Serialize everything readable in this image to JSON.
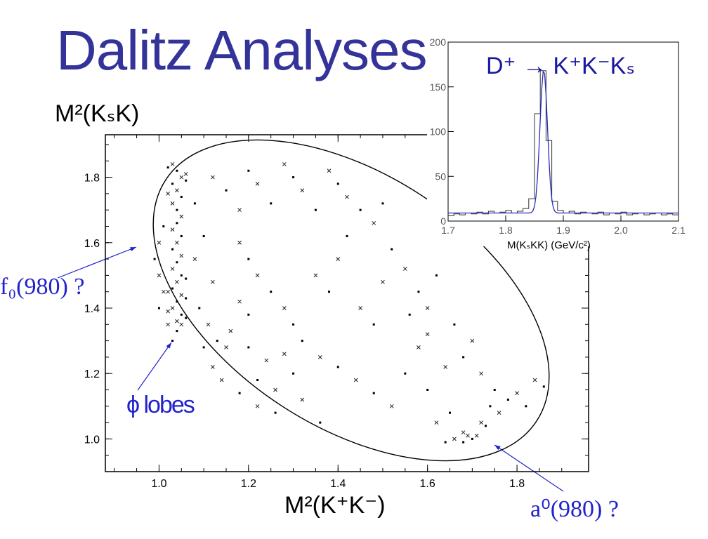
{
  "title": "Dalitz Analyses",
  "annotations": {
    "f0": "f₀(980) ?",
    "phi": "ϕ lobes",
    "a0": "a⁰(980) ?"
  },
  "colors": {
    "title": "#333399",
    "annotation": "#2222cc",
    "inset_fit": "#2b2bb8"
  },
  "chart_data": [
    {
      "type": "scatter",
      "xlabel": "M²(K⁺K⁻)",
      "ylabel": "M²(KₛK)",
      "xlim": [
        0.88,
        1.96
      ],
      "ylim": [
        0.9,
        1.93
      ],
      "xticks": [
        "1.0",
        "1.2",
        "1.4",
        "1.6",
        "1.8"
      ],
      "yticks": [
        "1.0",
        "1.2",
        "1.4",
        "1.6",
        "1.8"
      ],
      "boundary": "Dalitz kinematic boundary (ellipse)",
      "points": [
        [
          1.03,
          1.84
        ],
        [
          1.04,
          1.82
        ],
        [
          1.05,
          1.8
        ],
        [
          1.03,
          1.78
        ],
        [
          1.04,
          1.76
        ],
        [
          1.05,
          1.74
        ],
        [
          1.03,
          1.72
        ],
        [
          1.04,
          1.7
        ],
        [
          1.05,
          1.68
        ],
        [
          1.04,
          1.66
        ],
        [
          1.03,
          1.64
        ],
        [
          1.05,
          1.62
        ],
        [
          1.04,
          1.6
        ],
        [
          1.03,
          1.58
        ],
        [
          1.05,
          1.56
        ],
        [
          1.04,
          1.54
        ],
        [
          1.03,
          1.52
        ],
        [
          1.05,
          1.5
        ],
        [
          1.04,
          1.48
        ],
        [
          1.03,
          1.46
        ],
        [
          1.05,
          1.44
        ],
        [
          1.04,
          1.42
        ],
        [
          1.03,
          1.4
        ],
        [
          1.05,
          1.38
        ],
        [
          1.04,
          1.36
        ],
        [
          1.06,
          1.37
        ],
        [
          1.02,
          1.39
        ],
        [
          1.06,
          1.43
        ],
        [
          1.02,
          1.45
        ],
        [
          1.06,
          1.49
        ],
        [
          1.02,
          1.75
        ],
        [
          1.06,
          1.79
        ],
        [
          1.06,
          1.81
        ],
        [
          1.02,
          1.83
        ],
        [
          1.05,
          1.35
        ],
        [
          1.04,
          1.33
        ],
        [
          1.0,
          1.6
        ],
        [
          1.01,
          1.65
        ],
        [
          1.0,
          1.5
        ],
        [
          0.99,
          1.55
        ],
        [
          1.01,
          1.45
        ],
        [
          1.0,
          1.4
        ],
        [
          1.02,
          1.35
        ],
        [
          1.03,
          1.3
        ],
        [
          1.08,
          1.55
        ],
        [
          1.1,
          1.62
        ],
        [
          1.12,
          1.48
        ],
        [
          1.09,
          1.4
        ],
        [
          1.11,
          1.35
        ],
        [
          1.13,
          1.3
        ],
        [
          1.15,
          1.28
        ],
        [
          1.08,
          1.72
        ],
        [
          1.12,
          1.8
        ],
        [
          1.15,
          1.76
        ],
        [
          1.18,
          1.7
        ],
        [
          1.2,
          1.82
        ],
        [
          1.22,
          1.78
        ],
        [
          1.25,
          1.72
        ],
        [
          1.28,
          1.84
        ],
        [
          1.3,
          1.8
        ],
        [
          1.32,
          1.76
        ],
        [
          1.35,
          1.7
        ],
        [
          1.38,
          1.82
        ],
        [
          1.4,
          1.78
        ],
        [
          1.42,
          1.74
        ],
        [
          1.45,
          1.7
        ],
        [
          1.48,
          1.66
        ],
        [
          1.5,
          1.72
        ],
        [
          1.18,
          1.6
        ],
        [
          1.2,
          1.55
        ],
        [
          1.22,
          1.5
        ],
        [
          1.25,
          1.45
        ],
        [
          1.28,
          1.4
        ],
        [
          1.3,
          1.35
        ],
        [
          1.18,
          1.42
        ],
        [
          1.2,
          1.38
        ],
        [
          1.16,
          1.33
        ],
        [
          1.2,
          1.28
        ],
        [
          1.24,
          1.24
        ],
        [
          1.22,
          1.18
        ],
        [
          1.26,
          1.15
        ],
        [
          1.3,
          1.2
        ],
        [
          1.28,
          1.26
        ],
        [
          1.32,
          1.3
        ],
        [
          1.35,
          1.5
        ],
        [
          1.38,
          1.45
        ],
        [
          1.4,
          1.55
        ],
        [
          1.42,
          1.62
        ],
        [
          1.45,
          1.4
        ],
        [
          1.48,
          1.35
        ],
        [
          1.5,
          1.48
        ],
        [
          1.52,
          1.58
        ],
        [
          1.55,
          1.52
        ],
        [
          1.58,
          1.45
        ],
        [
          1.6,
          1.4
        ],
        [
          1.62,
          1.5
        ],
        [
          1.36,
          1.25
        ],
        [
          1.4,
          1.22
        ],
        [
          1.44,
          1.18
        ],
        [
          1.48,
          1.14
        ],
        [
          1.52,
          1.1
        ],
        [
          1.55,
          1.2
        ],
        [
          1.58,
          1.28
        ],
        [
          1.6,
          1.15
        ],
        [
          1.62,
          1.05
        ],
        [
          1.65,
          1.08
        ],
        [
          1.68,
          1.02
        ],
        [
          1.7,
          1.0
        ],
        [
          1.72,
          1.05
        ],
        [
          1.74,
          1.1
        ],
        [
          1.76,
          1.08
        ],
        [
          1.78,
          1.12
        ],
        [
          1.8,
          1.14
        ],
        [
          1.82,
          1.1
        ],
        [
          1.84,
          1.18
        ],
        [
          1.86,
          1.16
        ],
        [
          1.66,
          1.0
        ],
        [
          1.68,
          0.99
        ],
        [
          1.69,
          1.01
        ],
        [
          1.64,
          0.99
        ],
        [
          1.71,
          1.01
        ],
        [
          1.73,
          1.04
        ],
        [
          1.64,
          1.22
        ],
        [
          1.68,
          1.25
        ],
        [
          1.7,
          1.3
        ],
        [
          1.66,
          1.35
        ],
        [
          1.72,
          1.2
        ],
        [
          1.75,
          1.15
        ],
        [
          1.6,
          1.32
        ],
        [
          1.56,
          1.38
        ],
        [
          1.12,
          1.22
        ],
        [
          1.1,
          1.28
        ],
        [
          1.14,
          1.18
        ],
        [
          1.18,
          1.14
        ],
        [
          1.22,
          1.1
        ],
        [
          1.26,
          1.08
        ],
        [
          1.32,
          1.12
        ],
        [
          1.36,
          1.05
        ]
      ]
    },
    {
      "type": "bar",
      "title": "D⁺ → K⁺K⁻Kₛ",
      "xlabel": "M(KₛKK) (GeV/c²)",
      "xlim": [
        1.7,
        2.1
      ],
      "ylim": [
        0,
        200
      ],
      "xticks": [
        "1.7",
        "1.8",
        "1.9",
        "2.0",
        "2.1"
      ],
      "yticks": [
        "0",
        "50",
        "100",
        "150",
        "200"
      ],
      "x": [
        1.705,
        1.715,
        1.725,
        1.735,
        1.745,
        1.755,
        1.765,
        1.775,
        1.785,
        1.795,
        1.805,
        1.815,
        1.825,
        1.835,
        1.845,
        1.855,
        1.865,
        1.875,
        1.885,
        1.895,
        1.905,
        1.915,
        1.925,
        1.935,
        1.945,
        1.955,
        1.965,
        1.975,
        1.985,
        1.995,
        2.005,
        2.015,
        2.025,
        2.035,
        2.045,
        2.055,
        2.065,
        2.075,
        2.085,
        2.095
      ],
      "values": [
        6,
        8,
        7,
        9,
        8,
        10,
        8,
        11,
        9,
        10,
        12,
        9,
        11,
        14,
        25,
        120,
        168,
        90,
        22,
        12,
        9,
        11,
        8,
        10,
        9,
        8,
        10,
        7,
        9,
        8,
        10,
        7,
        8,
        9,
        7,
        8,
        9,
        7,
        8,
        7
      ],
      "fit": "gaussian peak near 1.87 on flat background"
    }
  ]
}
